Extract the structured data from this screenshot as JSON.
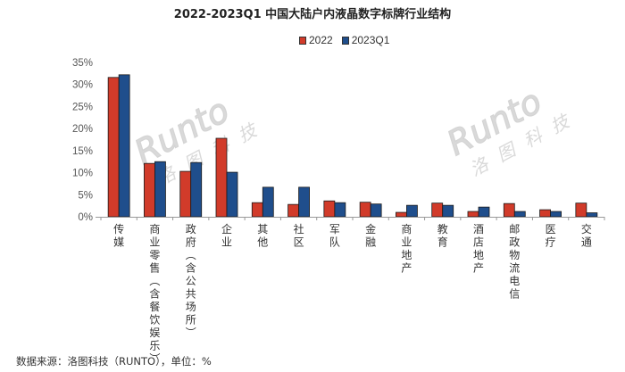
{
  "title": "2022-2023Q1 中国大陆户内液晶数字标牌行业结构",
  "legend": [
    {
      "label": "2022",
      "color": "#D13B2A"
    },
    {
      "label": "2023Q1",
      "color": "#1F4E8C"
    }
  ],
  "source": "数据来源：洛图科技（RUNTO），单位：%",
  "watermark": {
    "latin": "Runto",
    "cn": "洛图科技"
  },
  "chart_data": {
    "type": "bar",
    "title": "2022-2023Q1 中国大陆户内液晶数字标牌行业结构",
    "xlabel": "",
    "ylabel": "",
    "ylim": [
      0,
      35
    ],
    "yticks": [
      "0%",
      "5%",
      "10%",
      "15%",
      "20%",
      "25%",
      "30%",
      "35%"
    ],
    "grid": false,
    "legend_position": "top",
    "categories": [
      "传媒",
      "商业零售(含餐饮娱乐)",
      "政府（含公共场所）",
      "企业",
      "其他",
      "社区",
      "军队",
      "金融",
      "商业地产",
      "教育",
      "酒店地产",
      "邮政物流电信",
      "医疗",
      "交通"
    ],
    "series": [
      {
        "name": "2022",
        "color": "#D13B2A",
        "values": [
          31.6,
          12.1,
          10.3,
          17.8,
          3.2,
          2.8,
          3.6,
          3.3,
          1.0,
          3.1,
          1.2,
          3.0,
          1.6,
          3.1
        ]
      },
      {
        "name": "2023Q1",
        "color": "#1F4E8C",
        "values": [
          32.2,
          12.5,
          12.3,
          10.1,
          6.7,
          6.7,
          3.2,
          2.9,
          2.6,
          2.6,
          2.2,
          1.2,
          1.2,
          0.9
        ]
      }
    ]
  }
}
